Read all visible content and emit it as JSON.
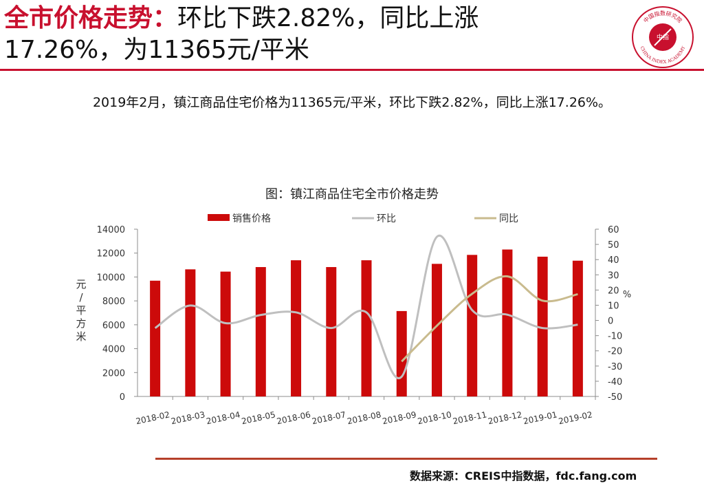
{
  "header": {
    "title_accent": "全市价格走势：",
    "title_line1_rest": "环比下跌2.82%，同比上涨",
    "title_line2": "17.26%，为11365元/平米"
  },
  "logo": {
    "top_arc_text": "中国指数研究院",
    "center_text": "中指",
    "bottom_arc_text": "CHINA INDEX ACADEMY",
    "color": "#c8102e"
  },
  "summary": "2019年2月，镇江商品住宅价格为11365元/平米，环比下跌2.82%，同比上涨17.26%。",
  "source": "数据来源：CREIS中指数据，fdc.fang.com",
  "colors": {
    "accent": "#c8102e",
    "bar": "#cc0a0a",
    "mom": "#bfbfbf",
    "yoy": "#c9bb8e",
    "bottom_rule": "#b5402a"
  },
  "chart_data": {
    "type": "bar",
    "title": "图：镇江商品住宅全市价格走势",
    "categories": [
      "2018-02",
      "2018-03",
      "2018-04",
      "2018-05",
      "2018-06",
      "2018-07",
      "2018-08",
      "2018-09",
      "2018-10",
      "2018-11",
      "2018-12",
      "2019-01",
      "2019-02"
    ],
    "series": [
      {
        "name": "销售价格",
        "type": "bar",
        "axis": "left",
        "values": [
          9690,
          10640,
          10450,
          10830,
          11400,
          10830,
          11400,
          7150,
          11100,
          11850,
          12300,
          11700,
          11365
        ]
      },
      {
        "name": "环比",
        "type": "line",
        "axis": "right",
        "values": [
          -5,
          9.8,
          -1.8,
          3.6,
          5.3,
          -5,
          5.3,
          -37,
          55,
          6.8,
          3.8,
          -5,
          -2.82
        ]
      },
      {
        "name": "同比",
        "type": "line",
        "axis": "right",
        "values": [
          null,
          null,
          null,
          null,
          null,
          null,
          null,
          -27,
          -3.5,
          17.5,
          29,
          13,
          17.26
        ]
      }
    ],
    "ylabel": "元/平方米",
    "y2label": "%",
    "ylim": [
      0,
      14000
    ],
    "y_ticks": [
      "0",
      "2000",
      "4000",
      "6000",
      "8000",
      "10000",
      "12000",
      "14000"
    ],
    "y2lim": [
      -50,
      60
    ],
    "y2_ticks": [
      "-50",
      "-40",
      "-30",
      "-20",
      "-10",
      "0",
      "10",
      "20",
      "30",
      "40",
      "50",
      "60"
    ],
    "legend_position": "top",
    "grid": false
  }
}
